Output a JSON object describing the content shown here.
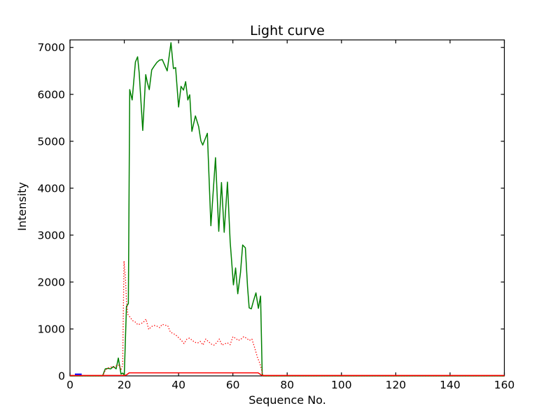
{
  "figure": {
    "background_color": "#ffffff",
    "axis_color": "#000000"
  },
  "chart_data": {
    "type": "line",
    "title": "Light curve",
    "xlabel": "Sequence No.",
    "ylabel": "Intensity",
    "xlim": [
      0,
      160
    ],
    "ylim": [
      0,
      7160
    ],
    "xticks": [
      0,
      20,
      40,
      60,
      80,
      100,
      120,
      140,
      160
    ],
    "yticks": [
      0,
      1000,
      2000,
      3000,
      4000,
      5000,
      6000,
      7000
    ],
    "grid": false,
    "legend": "none",
    "tick_direction": "in",
    "series": [
      {
        "name": "green-solid-light-curve",
        "color": "#008000",
        "style": "solid",
        "width": 1.5,
        "points": [
          [
            0,
            0
          ],
          [
            12,
            0
          ],
          [
            13,
            150
          ],
          [
            14,
            160
          ],
          [
            15,
            150
          ],
          [
            16,
            200
          ],
          [
            17,
            150
          ],
          [
            17.8,
            380
          ],
          [
            18.8,
            40
          ],
          [
            19.4,
            60
          ],
          [
            20,
            20
          ],
          [
            20.8,
            1480
          ],
          [
            21.5,
            1540
          ],
          [
            22,
            6100
          ],
          [
            22.9,
            5880
          ],
          [
            24.1,
            6690
          ],
          [
            24.9,
            6800
          ],
          [
            25.5,
            6450
          ],
          [
            26.8,
            5230
          ],
          [
            27.9,
            6420
          ],
          [
            28.5,
            6250
          ],
          [
            29.2,
            6100
          ],
          [
            30.1,
            6520
          ],
          [
            31,
            6600
          ],
          [
            32,
            6680
          ],
          [
            33,
            6730
          ],
          [
            34,
            6740
          ],
          [
            34.9,
            6620
          ],
          [
            35.8,
            6500
          ],
          [
            37.2,
            7100
          ],
          [
            38.1,
            6550
          ],
          [
            38.9,
            6570
          ],
          [
            40,
            5730
          ],
          [
            40.9,
            6170
          ],
          [
            41.8,
            6090
          ],
          [
            42.6,
            6270
          ],
          [
            43.4,
            5880
          ],
          [
            44.1,
            5990
          ],
          [
            44.9,
            5210
          ],
          [
            46.2,
            5540
          ],
          [
            47.4,
            5310
          ],
          [
            48.2,
            5010
          ],
          [
            48.9,
            4920
          ],
          [
            50.6,
            5170
          ],
          [
            51.9,
            3200
          ],
          [
            53.6,
            4650
          ],
          [
            54.8,
            3080
          ],
          [
            55.8,
            4120
          ],
          [
            56.8,
            3060
          ],
          [
            58,
            4130
          ],
          [
            59,
            2860
          ],
          [
            60.2,
            1940
          ],
          [
            61,
            2300
          ],
          [
            61.8,
            1750
          ],
          [
            62.8,
            2200
          ],
          [
            63.6,
            2790
          ],
          [
            64.6,
            2730
          ],
          [
            65.4,
            1900
          ],
          [
            66,
            1450
          ],
          [
            66.8,
            1430
          ],
          [
            67.6,
            1600
          ],
          [
            68.5,
            1770
          ],
          [
            69.4,
            1440
          ],
          [
            70.2,
            1700
          ],
          [
            70.8,
            40
          ],
          [
            71.2,
            0
          ],
          [
            160,
            0
          ]
        ]
      },
      {
        "name": "red-dotted-curve",
        "color": "#ff0000",
        "style": "dotted",
        "width": 1.3,
        "points": [
          [
            0,
            0
          ],
          [
            12,
            0
          ],
          [
            13,
            120
          ],
          [
            14,
            165
          ],
          [
            15,
            190
          ],
          [
            16,
            180
          ],
          [
            17,
            210
          ],
          [
            18,
            230
          ],
          [
            18.8,
            140
          ],
          [
            19.4,
            230
          ],
          [
            19.9,
            2450
          ],
          [
            20.4,
            2100
          ],
          [
            20.8,
            1600
          ],
          [
            21.3,
            1310
          ],
          [
            22,
            1260
          ],
          [
            23,
            1180
          ],
          [
            24,
            1150
          ],
          [
            25,
            1090
          ],
          [
            26,
            1110
          ],
          [
            27,
            1140
          ],
          [
            28,
            1210
          ],
          [
            29,
            990
          ],
          [
            30,
            1050
          ],
          [
            31,
            1075
          ],
          [
            32,
            1060
          ],
          [
            33,
            1030
          ],
          [
            34,
            1100
          ],
          [
            35,
            1080
          ],
          [
            36,
            1070
          ],
          [
            37,
            930
          ],
          [
            38,
            905
          ],
          [
            39,
            870
          ],
          [
            40,
            815
          ],
          [
            41,
            760
          ],
          [
            42,
            690
          ],
          [
            43,
            780
          ],
          [
            44,
            805
          ],
          [
            45,
            760
          ],
          [
            46,
            715
          ],
          [
            47,
            700
          ],
          [
            48,
            735
          ],
          [
            49,
            660
          ],
          [
            50,
            785
          ],
          [
            51,
            730
          ],
          [
            52,
            680
          ],
          [
            53,
            655
          ],
          [
            54,
            705
          ],
          [
            55,
            785
          ],
          [
            56,
            655
          ],
          [
            57,
            685
          ],
          [
            58,
            705
          ],
          [
            59,
            665
          ],
          [
            60,
            835
          ],
          [
            61,
            800
          ],
          [
            62,
            755
          ],
          [
            63,
            785
          ],
          [
            64,
            835
          ],
          [
            65,
            805
          ],
          [
            66,
            755
          ],
          [
            67,
            785
          ],
          [
            68,
            605
          ],
          [
            69,
            405
          ],
          [
            70,
            255
          ],
          [
            70.6,
            120
          ],
          [
            71,
            0
          ],
          [
            160,
            0
          ]
        ]
      },
      {
        "name": "red-solid-flat-curve",
        "color": "#ff0000",
        "style": "solid",
        "width": 1.5,
        "points": [
          [
            0,
            10
          ],
          [
            20.3,
            10
          ],
          [
            21,
            30
          ],
          [
            21.8,
            65
          ],
          [
            69.3,
            65
          ],
          [
            70.2,
            30
          ],
          [
            70.8,
            10
          ],
          [
            160,
            10
          ]
        ]
      },
      {
        "name": "blue-short-segment",
        "color": "#0000ff",
        "style": "solid",
        "width": 2,
        "points": [
          [
            1.8,
            35
          ],
          [
            4.3,
            35
          ]
        ]
      }
    ]
  }
}
